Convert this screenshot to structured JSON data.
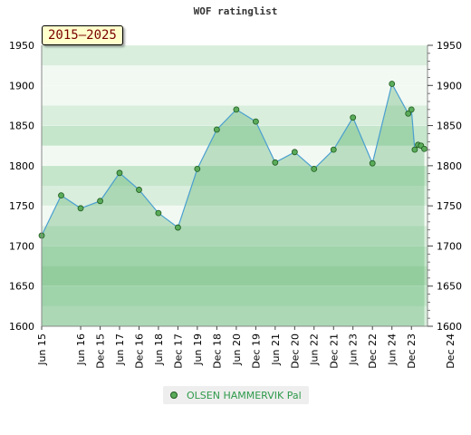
{
  "chart_data": {
    "type": "area",
    "title": "WOF ratinglist",
    "period_label": "2015–2025",
    "ylim": [
      1600,
      1950
    ],
    "y_ticks": [
      1600,
      1650,
      1700,
      1750,
      1800,
      1850,
      1900,
      1950
    ],
    "x_tick_labels": [
      "Jun 15",
      "Dec 15",
      "Jun 16",
      "Dec 16",
      "Jun 17",
      "Dec 17",
      "Jun 18",
      "Dec 18",
      "Jun 19",
      "Dec 19",
      "Jun 20",
      "Dec 20",
      "Jun 21",
      "Dec 21",
      "Jun 22",
      "Dec 22",
      "Jun 23",
      "Dec 23",
      "Jun 24",
      "Dec 24"
    ],
    "grid": true,
    "legend_position": "bottom",
    "series": [
      {
        "name": "OLSEN HAMMERVIK Pal",
        "points": [
          {
            "x": "2015-06-01",
            "y": 1713
          },
          {
            "x": "2015-12-01",
            "y": 1763
          },
          {
            "x": "2016-06-01",
            "y": 1747
          },
          {
            "x": "2016-12-01",
            "y": 1756
          },
          {
            "x": "2017-06-01",
            "y": 1791
          },
          {
            "x": "2017-12-01",
            "y": 1770
          },
          {
            "x": "2018-06-01",
            "y": 1741
          },
          {
            "x": "2018-12-01",
            "y": 1723
          },
          {
            "x": "2019-06-01",
            "y": 1796
          },
          {
            "x": "2019-12-01",
            "y": 1845
          },
          {
            "x": "2020-06-01",
            "y": 1870
          },
          {
            "x": "2020-12-01",
            "y": 1855
          },
          {
            "x": "2021-06-01",
            "y": 1804
          },
          {
            "x": "2021-12-01",
            "y": 1817
          },
          {
            "x": "2022-06-01",
            "y": 1796
          },
          {
            "x": "2022-12-01",
            "y": 1820
          },
          {
            "x": "2023-06-01",
            "y": 1860
          },
          {
            "x": "2023-12-01",
            "y": 1803
          },
          {
            "x": "2024-06-01",
            "y": 1902
          },
          {
            "x": "2024-11-01",
            "y": 1865
          },
          {
            "x": "2024-12-01",
            "y": 1870
          },
          {
            "x": "2025-01-01",
            "y": 1820
          },
          {
            "x": "2025-02-01",
            "y": 1826
          },
          {
            "x": "2025-03-01",
            "y": 1825
          },
          {
            "x": "2025-04-01",
            "y": 1821
          }
        ]
      }
    ]
  },
  "colors": {
    "band_light": "#f2f9f2",
    "band_1": "#d9eedc",
    "band_2": "#c5e6cb",
    "band_3": "#b3ddb9",
    "area_fill": "#5aae6c",
    "line": "#4a9fd0",
    "marker_fill": "#5aab5a",
    "marker_stroke": "#1f5a1f",
    "badge_text": "#7a0000",
    "legend_text": "#2e9a4a"
  }
}
